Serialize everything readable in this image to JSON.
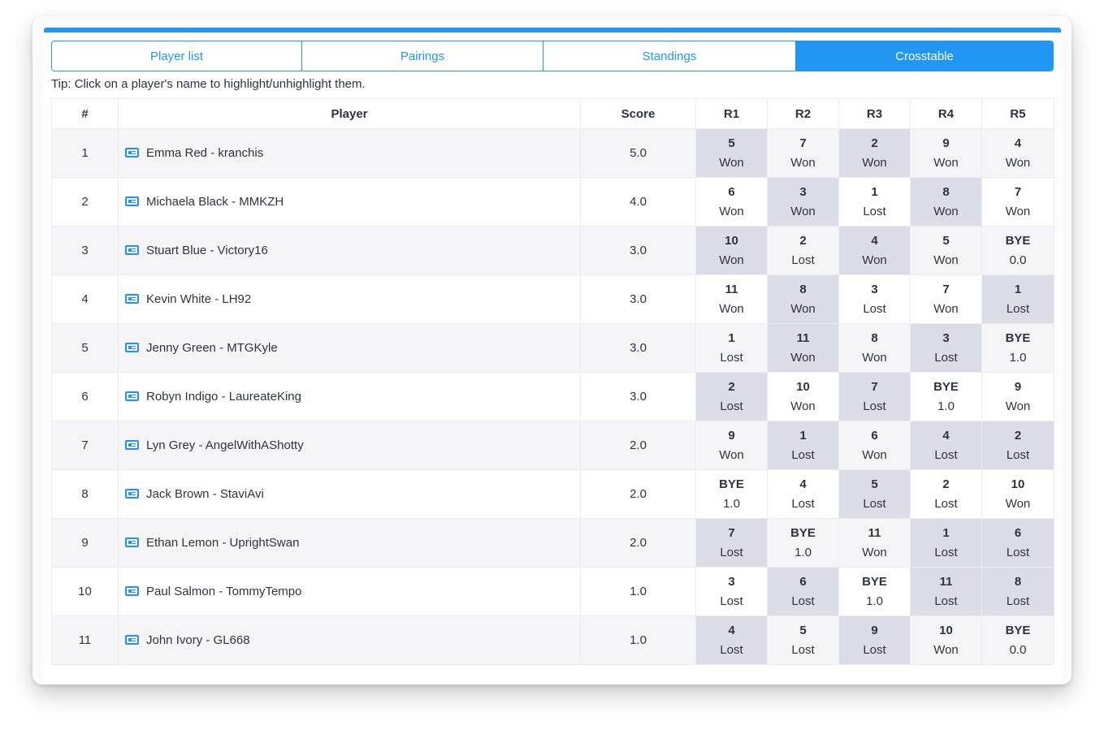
{
  "tabs": [
    {
      "label": "Player list",
      "active": false
    },
    {
      "label": "Pairings",
      "active": false
    },
    {
      "label": "Standings",
      "active": false
    },
    {
      "label": "Crosstable",
      "active": true
    }
  ],
  "tip": "Tip: Click on a player's name to highlight/unhighlight them.",
  "colors": {
    "accent": "#2196f3",
    "highlight_cell": "#dcdce6",
    "row_alt": "#f5f5f8"
  },
  "headers": [
    "#",
    "Player",
    "Score",
    "R1",
    "R2",
    "R3",
    "R4",
    "R5"
  ],
  "icon": "player-card-icon",
  "rows": [
    {
      "num": "1",
      "player": "Emma Red - kranchis",
      "score": "5.0",
      "rounds": [
        {
          "opp": "5",
          "res": "Won",
          "hl": true
        },
        {
          "opp": "7",
          "res": "Won",
          "hl": false
        },
        {
          "opp": "2",
          "res": "Won",
          "hl": true
        },
        {
          "opp": "9",
          "res": "Won",
          "hl": false
        },
        {
          "opp": "4",
          "res": "Won",
          "hl": false
        }
      ]
    },
    {
      "num": "2",
      "player": "Michaela Black - MMKZH",
      "score": "4.0",
      "rounds": [
        {
          "opp": "6",
          "res": "Won",
          "hl": false
        },
        {
          "opp": "3",
          "res": "Won",
          "hl": true
        },
        {
          "opp": "1",
          "res": "Lost",
          "hl": false
        },
        {
          "opp": "8",
          "res": "Won",
          "hl": true
        },
        {
          "opp": "7",
          "res": "Won",
          "hl": false
        }
      ]
    },
    {
      "num": "3",
      "player": "Stuart Blue - Victory16",
      "score": "3.0",
      "rounds": [
        {
          "opp": "10",
          "res": "Won",
          "hl": true
        },
        {
          "opp": "2",
          "res": "Lost",
          "hl": false
        },
        {
          "opp": "4",
          "res": "Won",
          "hl": true
        },
        {
          "opp": "5",
          "res": "Won",
          "hl": false
        },
        {
          "opp": "BYE",
          "res": "0.0",
          "hl": false
        }
      ]
    },
    {
      "num": "4",
      "player": "Kevin White - LH92",
      "score": "3.0",
      "rounds": [
        {
          "opp": "11",
          "res": "Won",
          "hl": false
        },
        {
          "opp": "8",
          "res": "Won",
          "hl": true
        },
        {
          "opp": "3",
          "res": "Lost",
          "hl": false
        },
        {
          "opp": "7",
          "res": "Won",
          "hl": false
        },
        {
          "opp": "1",
          "res": "Lost",
          "hl": true
        }
      ]
    },
    {
      "num": "5",
      "player": "Jenny Green - MTGKyle",
      "score": "3.0",
      "rounds": [
        {
          "opp": "1",
          "res": "Lost",
          "hl": false
        },
        {
          "opp": "11",
          "res": "Won",
          "hl": true
        },
        {
          "opp": "8",
          "res": "Won",
          "hl": false
        },
        {
          "opp": "3",
          "res": "Lost",
          "hl": true
        },
        {
          "opp": "BYE",
          "res": "1.0",
          "hl": false
        }
      ]
    },
    {
      "num": "6",
      "player": "Robyn Indigo - LaureateKing",
      "score": "3.0",
      "rounds": [
        {
          "opp": "2",
          "res": "Lost",
          "hl": true
        },
        {
          "opp": "10",
          "res": "Won",
          "hl": false
        },
        {
          "opp": "7",
          "res": "Lost",
          "hl": true
        },
        {
          "opp": "BYE",
          "res": "1.0",
          "hl": false
        },
        {
          "opp": "9",
          "res": "Won",
          "hl": false
        }
      ]
    },
    {
      "num": "7",
      "player": "Lyn Grey - AngelWithAShotty",
      "score": "2.0",
      "rounds": [
        {
          "opp": "9",
          "res": "Won",
          "hl": false
        },
        {
          "opp": "1",
          "res": "Lost",
          "hl": true
        },
        {
          "opp": "6",
          "res": "Won",
          "hl": false
        },
        {
          "opp": "4",
          "res": "Lost",
          "hl": true
        },
        {
          "opp": "2",
          "res": "Lost",
          "hl": true
        }
      ]
    },
    {
      "num": "8",
      "player": "Jack Brown - StaviAvi",
      "score": "2.0",
      "rounds": [
        {
          "opp": "BYE",
          "res": "1.0",
          "hl": false
        },
        {
          "opp": "4",
          "res": "Lost",
          "hl": false
        },
        {
          "opp": "5",
          "res": "Lost",
          "hl": true
        },
        {
          "opp": "2",
          "res": "Lost",
          "hl": false
        },
        {
          "opp": "10",
          "res": "Won",
          "hl": false
        }
      ]
    },
    {
      "num": "9",
      "player": "Ethan Lemon - UprightSwan",
      "score": "2.0",
      "rounds": [
        {
          "opp": "7",
          "res": "Lost",
          "hl": true
        },
        {
          "opp": "BYE",
          "res": "1.0",
          "hl": false
        },
        {
          "opp": "11",
          "res": "Won",
          "hl": false
        },
        {
          "opp": "1",
          "res": "Lost",
          "hl": true
        },
        {
          "opp": "6",
          "res": "Lost",
          "hl": true
        }
      ]
    },
    {
      "num": "10",
      "player": "Paul Salmon - TommyTempo",
      "score": "1.0",
      "rounds": [
        {
          "opp": "3",
          "res": "Lost",
          "hl": false
        },
        {
          "opp": "6",
          "res": "Lost",
          "hl": true
        },
        {
          "opp": "BYE",
          "res": "1.0",
          "hl": false
        },
        {
          "opp": "11",
          "res": "Lost",
          "hl": true
        },
        {
          "opp": "8",
          "res": "Lost",
          "hl": true
        }
      ]
    },
    {
      "num": "11",
      "player": "John Ivory - GL668",
      "score": "1.0",
      "rounds": [
        {
          "opp": "4",
          "res": "Lost",
          "hl": true
        },
        {
          "opp": "5",
          "res": "Lost",
          "hl": false
        },
        {
          "opp": "9",
          "res": "Lost",
          "hl": true
        },
        {
          "opp": "10",
          "res": "Won",
          "hl": false
        },
        {
          "opp": "BYE",
          "res": "0.0",
          "hl": false
        }
      ]
    }
  ]
}
